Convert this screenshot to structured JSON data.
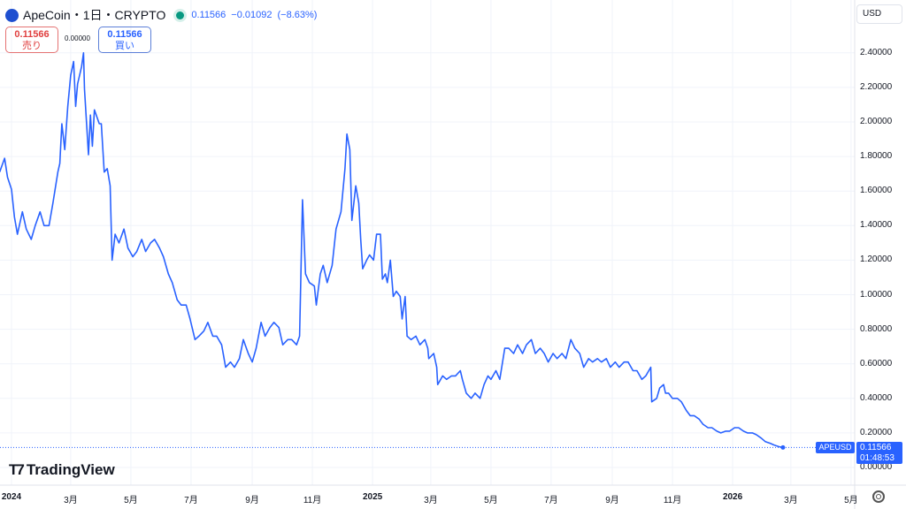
{
  "header": {
    "symbol": "ApeCoin",
    "interval": "1日",
    "exchange": "CRYPTO",
    "sep": "・",
    "last": "0.11566",
    "change": "−0.01092",
    "change_pct": "(−8.63%)"
  },
  "trade": {
    "sell_price": "0.11566",
    "sell_label": "売り",
    "spread": "0.00000",
    "buy_price": "0.11566",
    "buy_label": "買い"
  },
  "currency": "USD",
  "last_label": {
    "symbol": "APEUSD",
    "price": "0.11566",
    "countdown": "01:48:53"
  },
  "brand": "TradingView",
  "colors": {
    "line": "#2962ff",
    "grid": "#f0f3fa"
  },
  "chart_data": {
    "type": "line",
    "title": "ApeCoin・1日・CRYPTO",
    "x_unit": "days since 2024-01-01",
    "ylim": [
      0,
      2.5
    ],
    "yticks": [
      "0.00000",
      "0.20000",
      "0.40000",
      "0.60000",
      "0.80000",
      "1.00000",
      "1.20000",
      "1.40000",
      "1.60000",
      "1.80000",
      "2.00000",
      "2.20000",
      "2.40000"
    ],
    "xticks": [
      {
        "label": "2024",
        "day": 0,
        "bold": true
      },
      {
        "label": "3月",
        "day": 60
      },
      {
        "label": "5月",
        "day": 121
      },
      {
        "label": "7月",
        "day": 182
      },
      {
        "label": "9月",
        "day": 244
      },
      {
        "label": "11月",
        "day": 305
      },
      {
        "label": "2025",
        "day": 366,
        "bold": true
      },
      {
        "label": "3月",
        "day": 425
      },
      {
        "label": "5月",
        "day": 486
      },
      {
        "label": "7月",
        "day": 547
      },
      {
        "label": "9月",
        "day": 609
      },
      {
        "label": "11月",
        "day": 670
      },
      {
        "label": "2026",
        "day": 731,
        "bold": true
      },
      {
        "label": "3月",
        "day": 790
      },
      {
        "label": "5月",
        "day": 851
      }
    ],
    "grid": true,
    "series": [
      {
        "name": "APEUSD",
        "points": [
          [
            -12,
            1.71
          ],
          [
            -7,
            1.79
          ],
          [
            -4,
            1.68
          ],
          [
            0,
            1.61
          ],
          [
            3,
            1.45
          ],
          [
            6,
            1.35
          ],
          [
            11,
            1.48
          ],
          [
            15,
            1.38
          ],
          [
            20,
            1.32
          ],
          [
            24,
            1.4
          ],
          [
            29,
            1.48
          ],
          [
            33,
            1.4
          ],
          [
            38,
            1.4
          ],
          [
            42,
            1.53
          ],
          [
            47,
            1.71
          ],
          [
            49,
            1.76
          ],
          [
            51,
            1.99
          ],
          [
            54,
            1.84
          ],
          [
            57,
            2.09
          ],
          [
            60,
            2.27
          ],
          [
            63,
            2.35
          ],
          [
            65,
            2.09
          ],
          [
            67,
            2.22
          ],
          [
            71,
            2.32
          ],
          [
            73,
            2.4
          ],
          [
            74,
            2.19
          ],
          [
            78,
            1.81
          ],
          [
            80,
            2.04
          ],
          [
            82,
            1.86
          ],
          [
            84,
            2.07
          ],
          [
            89,
            1.99
          ],
          [
            91,
            1.99
          ],
          [
            94,
            1.71
          ],
          [
            97,
            1.73
          ],
          [
            100,
            1.63
          ],
          [
            102,
            1.2
          ],
          [
            105,
            1.35
          ],
          [
            109,
            1.3
          ],
          [
            114,
            1.38
          ],
          [
            118,
            1.27
          ],
          [
            123,
            1.22
          ],
          [
            127,
            1.25
          ],
          [
            132,
            1.32
          ],
          [
            136,
            1.25
          ],
          [
            141,
            1.3
          ],
          [
            145,
            1.32
          ],
          [
            150,
            1.27
          ],
          [
            154,
            1.22
          ],
          [
            159,
            1.12
          ],
          [
            163,
            1.07
          ],
          [
            168,
            0.97
          ],
          [
            172,
            0.94
          ],
          [
            177,
            0.94
          ],
          [
            181,
            0.86
          ],
          [
            186,
            0.74
          ],
          [
            190,
            0.76
          ],
          [
            195,
            0.79
          ],
          [
            199,
            0.84
          ],
          [
            204,
            0.76
          ],
          [
            208,
            0.76
          ],
          [
            213,
            0.71
          ],
          [
            217,
            0.58
          ],
          [
            222,
            0.61
          ],
          [
            226,
            0.58
          ],
          [
            231,
            0.63
          ],
          [
            235,
            0.74
          ],
          [
            240,
            0.66
          ],
          [
            244,
            0.61
          ],
          [
            248,
            0.69
          ],
          [
            253,
            0.84
          ],
          [
            257,
            0.76
          ],
          [
            262,
            0.81
          ],
          [
            266,
            0.84
          ],
          [
            271,
            0.81
          ],
          [
            275,
            0.71
          ],
          [
            280,
            0.74
          ],
          [
            284,
            0.74
          ],
          [
            289,
            0.71
          ],
          [
            292,
            0.76
          ],
          [
            295,
            1.55
          ],
          [
            298,
            1.12
          ],
          [
            302,
            1.07
          ],
          [
            307,
            1.05
          ],
          [
            309,
            0.94
          ],
          [
            313,
            1.12
          ],
          [
            316,
            1.17
          ],
          [
            320,
            1.07
          ],
          [
            325,
            1.17
          ],
          [
            329,
            1.38
          ],
          [
            334,
            1.48
          ],
          [
            338,
            1.73
          ],
          [
            340,
            1.93
          ],
          [
            343,
            1.84
          ],
          [
            345,
            1.43
          ],
          [
            349,
            1.63
          ],
          [
            352,
            1.53
          ],
          [
            354,
            1.32
          ],
          [
            356,
            1.15
          ],
          [
            360,
            1.2
          ],
          [
            363,
            1.23
          ],
          [
            367,
            1.2
          ],
          [
            370,
            1.35
          ],
          [
            374,
            1.35
          ],
          [
            376,
            1.09
          ],
          [
            379,
            1.12
          ],
          [
            381,
            1.07
          ],
          [
            384,
            1.2
          ],
          [
            387,
            0.99
          ],
          [
            390,
            1.02
          ],
          [
            394,
            0.99
          ],
          [
            396,
            0.86
          ],
          [
            399,
            0.99
          ],
          [
            401,
            0.76
          ],
          [
            405,
            0.74
          ],
          [
            410,
            0.76
          ],
          [
            414,
            0.71
          ],
          [
            419,
            0.74
          ],
          [
            422,
            0.69
          ],
          [
            423,
            0.63
          ],
          [
            428,
            0.66
          ],
          [
            431,
            0.58
          ],
          [
            432,
            0.48
          ],
          [
            437,
            0.53
          ],
          [
            441,
            0.51
          ],
          [
            446,
            0.53
          ],
          [
            450,
            0.53
          ],
          [
            455,
            0.56
          ],
          [
            457,
            0.51
          ],
          [
            461,
            0.43
          ],
          [
            466,
            0.4
          ],
          [
            470,
            0.43
          ],
          [
            475,
            0.4
          ],
          [
            479,
            0.48
          ],
          [
            483,
            0.53
          ],
          [
            486,
            0.51
          ],
          [
            491,
            0.56
          ],
          [
            495,
            0.51
          ],
          [
            500,
            0.69
          ],
          [
            504,
            0.69
          ],
          [
            509,
            0.66
          ],
          [
            513,
            0.71
          ],
          [
            518,
            0.66
          ],
          [
            522,
            0.71
          ],
          [
            527,
            0.74
          ],
          [
            531,
            0.66
          ],
          [
            536,
            0.69
          ],
          [
            540,
            0.66
          ],
          [
            544,
            0.61
          ],
          [
            549,
            0.66
          ],
          [
            553,
            0.63
          ],
          [
            558,
            0.66
          ],
          [
            562,
            0.63
          ],
          [
            567,
            0.74
          ],
          [
            571,
            0.69
          ],
          [
            576,
            0.66
          ],
          [
            580,
            0.58
          ],
          [
            585,
            0.63
          ],
          [
            589,
            0.61
          ],
          [
            594,
            0.63
          ],
          [
            598,
            0.61
          ],
          [
            603,
            0.63
          ],
          [
            607,
            0.58
          ],
          [
            612,
            0.61
          ],
          [
            616,
            0.58
          ],
          [
            621,
            0.61
          ],
          [
            625,
            0.61
          ],
          [
            630,
            0.56
          ],
          [
            634,
            0.56
          ],
          [
            639,
            0.51
          ],
          [
            643,
            0.53
          ],
          [
            648,
            0.58
          ],
          [
            649,
            0.38
          ],
          [
            654,
            0.4
          ],
          [
            657,
            0.46
          ],
          [
            661,
            0.48
          ],
          [
            663,
            0.43
          ],
          [
            666,
            0.43
          ],
          [
            670,
            0.4
          ],
          [
            675,
            0.4
          ],
          [
            679,
            0.38
          ],
          [
            684,
            0.33
          ],
          [
            688,
            0.3
          ],
          [
            692,
            0.3
          ],
          [
            697,
            0.28
          ],
          [
            701,
            0.25
          ],
          [
            706,
            0.23
          ],
          [
            710,
            0.23
          ],
          [
            715,
            0.21
          ],
          [
            719,
            0.2
          ],
          [
            724,
            0.21
          ],
          [
            728,
            0.21
          ],
          [
            733,
            0.23
          ],
          [
            737,
            0.23
          ],
          [
            742,
            0.21
          ],
          [
            746,
            0.2
          ],
          [
            751,
            0.2
          ],
          [
            755,
            0.19
          ],
          [
            760,
            0.17
          ],
          [
            764,
            0.15
          ],
          [
            769,
            0.14
          ],
          [
            773,
            0.13
          ],
          [
            778,
            0.12
          ],
          [
            782,
            0.11566
          ]
        ]
      }
    ]
  }
}
